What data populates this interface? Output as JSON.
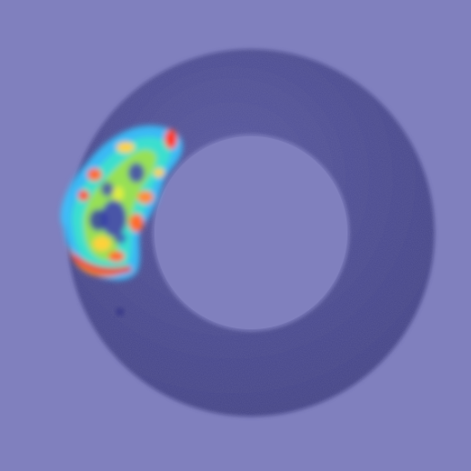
{
  "image": {
    "subject": "washer-ring-with-heatmap",
    "colors": {
      "background": "#8080be",
      "ring": "#4e4e92",
      "ring_light": "#5c5ca2",
      "ring_shadow": "#3a3a78",
      "heat_cold": "#38c4ff",
      "heat_cool": "#3ce6c8",
      "heat_mid": "#a8e040",
      "heat_warm": "#ffd23a",
      "heat_hot": "#ff8a30",
      "heat_peak": "#ff3020",
      "heat_core": "#3b3cb6"
    },
    "heatmap": {
      "description_free": true,
      "levels": [
        "cold",
        "cool",
        "mid",
        "warm",
        "hot",
        "peak"
      ]
    }
  }
}
